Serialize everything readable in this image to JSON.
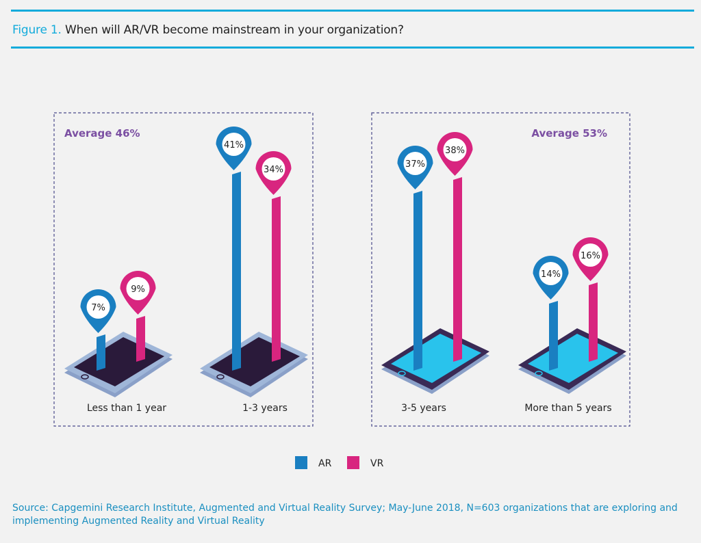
{
  "figure": {
    "label": "Figure 1",
    "label_separator": ".",
    "title": "When will AR/VR become mainstream in your organization?"
  },
  "panels": [
    {
      "average_label": "Average 46%",
      "average_value": 46
    },
    {
      "average_label": "Average 53%",
      "average_value": 53
    }
  ],
  "colors": {
    "ar": "#1a7fc1",
    "vr": "#d8257f",
    "accent": "#12abdb",
    "average_text": "#7b4fa2",
    "phone_dark": "#2a1a3a",
    "phone_light": "#29c3ec"
  },
  "chart_data": {
    "type": "bar",
    "categories": [
      "Less than 1 year",
      "1-3 years",
      "3-5 years",
      "More than 5 years"
    ],
    "series": [
      {
        "name": "AR",
        "values": [
          7,
          41,
          37,
          14
        ],
        "labels": [
          "7%",
          "41%",
          "37%",
          "14%"
        ]
      },
      {
        "name": "VR",
        "values": [
          9,
          34,
          38,
          16
        ],
        "labels": [
          "9%",
          "34%",
          "38%",
          "16%"
        ]
      }
    ],
    "legend": [
      "AR",
      "VR"
    ],
    "legend_placement": "bottom",
    "grid": false
  },
  "source": "Source: Capgemini Research Institute, Augmented and Virtual Reality Survey; May-June 2018, N=603 organizations that are exploring and implementing Augmented Reality and Virtual Reality"
}
